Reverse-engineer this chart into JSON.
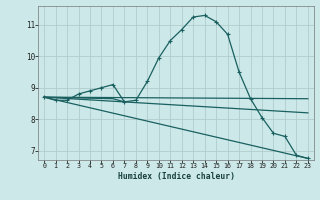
{
  "xlabel": "Humidex (Indice chaleur)",
  "bg_color": "#cce8e8",
  "grid_color": "#b0cccc",
  "line_color": "#1a6060",
  "xlim": [
    -0.5,
    23.5
  ],
  "ylim": [
    6.7,
    11.6
  ],
  "yticks": [
    7,
    8,
    9,
    10,
    11
  ],
  "xticks": [
    0,
    1,
    2,
    3,
    4,
    5,
    6,
    7,
    8,
    9,
    10,
    11,
    12,
    13,
    14,
    15,
    16,
    17,
    18,
    19,
    20,
    21,
    22,
    23
  ],
  "line1_x": [
    0,
    1,
    2,
    3,
    4,
    5,
    6,
    7,
    8,
    9,
    10,
    11,
    12,
    13,
    14,
    15,
    16,
    17,
    18,
    19,
    20,
    21,
    22,
    23
  ],
  "line1_y": [
    8.7,
    8.6,
    8.6,
    8.8,
    8.9,
    9.0,
    9.1,
    8.55,
    8.6,
    9.2,
    9.95,
    10.5,
    10.85,
    11.25,
    11.3,
    11.1,
    10.7,
    9.5,
    8.65,
    8.05,
    7.55,
    7.45,
    6.85,
    6.75
  ],
  "line2_x": [
    0,
    6,
    7
  ],
  "line2_y": [
    8.7,
    8.65,
    8.55
  ],
  "line3_x": [
    0,
    23
  ],
  "line3_y": [
    8.7,
    8.65
  ],
  "line4_x": [
    0,
    23
  ],
  "line4_y": [
    8.7,
    8.2
  ],
  "line5_x": [
    0,
    23
  ],
  "line5_y": [
    8.7,
    6.75
  ]
}
